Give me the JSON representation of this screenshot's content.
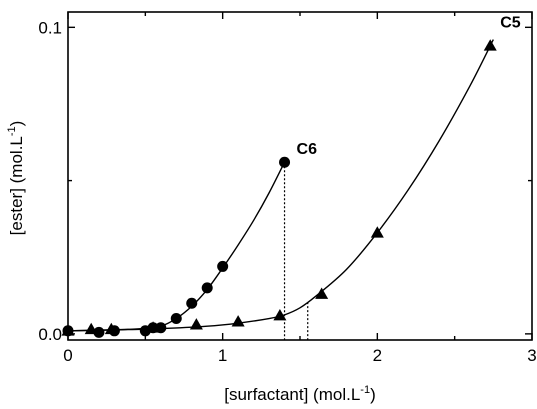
{
  "chart_data": {
    "type": "scatter",
    "xlabel": "[surfactant] (mol.L",
    "xlabel_sup": "-1",
    "xlabel_end": ")",
    "ylabel": "[ester] (mol.L",
    "ylabel_sup": "-1",
    "ylabel_end": ")",
    "xlim": [
      0,
      3
    ],
    "ylim": [
      -0.002,
      0.105
    ],
    "x_ticks": [
      {
        "value": 0,
        "label": "0"
      },
      {
        "value": 1,
        "label": "1"
      },
      {
        "value": 2,
        "label": "2"
      },
      {
        "value": 3,
        "label": "3"
      }
    ],
    "y_ticks": [
      {
        "value": 0.0,
        "label": "0.0"
      },
      {
        "value": 0.1,
        "label": "0.1"
      }
    ],
    "series": [
      {
        "name": "C6",
        "marker": "circle",
        "x": [
          0.0,
          0.2,
          0.3,
          0.5,
          0.55,
          0.6,
          0.7,
          0.8,
          0.9,
          1.0,
          1.4
        ],
        "y": [
          0.001,
          0.0005,
          0.001,
          0.001,
          0.002,
          0.002,
          0.005,
          0.01,
          0.015,
          0.022,
          0.056
        ],
        "curve_x": [
          0.0,
          0.2,
          0.4,
          0.5,
          0.6,
          0.7,
          0.8,
          0.9,
          1.0,
          1.1,
          1.2,
          1.3,
          1.4
        ],
        "curve_y": [
          0.001,
          0.0012,
          0.0015,
          0.0018,
          0.0025,
          0.005,
          0.009,
          0.0145,
          0.0215,
          0.029,
          0.037,
          0.046,
          0.056
        ],
        "drop_line_x": 1.4
      },
      {
        "name": "C5",
        "marker": "triangle",
        "x": [
          0.0,
          0.15,
          0.28,
          0.55,
          0.83,
          1.1,
          1.37,
          1.64,
          2.0,
          2.73
        ],
        "y": [
          0.001,
          0.0015,
          0.0015,
          0.002,
          0.003,
          0.004,
          0.006,
          0.013,
          0.033,
          0.094
        ],
        "curve_x": [
          0.0,
          0.3,
          0.6,
          0.9,
          1.1,
          1.3,
          1.4,
          1.5,
          1.6,
          1.8,
          2.0,
          2.2,
          2.4,
          2.6,
          2.75
        ],
        "curve_y": [
          0.001,
          0.0013,
          0.0017,
          0.0025,
          0.0035,
          0.005,
          0.0062,
          0.0085,
          0.0122,
          0.021,
          0.033,
          0.047,
          0.063,
          0.081,
          0.096
        ],
        "drop_line_x": 1.55
      }
    ],
    "grid": false,
    "legend": "none"
  }
}
